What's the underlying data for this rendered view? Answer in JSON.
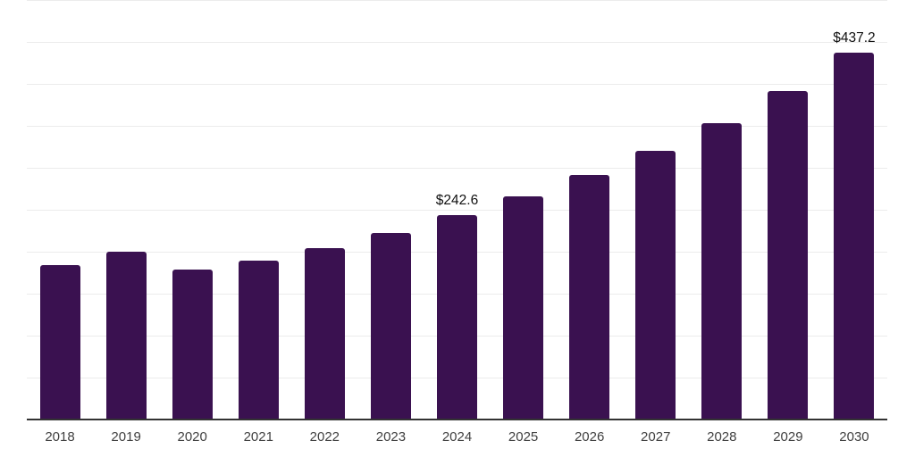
{
  "chart_data": {
    "type": "bar",
    "title": "",
    "xlabel": "",
    "ylabel": "",
    "categories": [
      "2018",
      "2019",
      "2020",
      "2021",
      "2022",
      "2023",
      "2024",
      "2025",
      "2026",
      "2027",
      "2028",
      "2029",
      "2030"
    ],
    "values": [
      183.2,
      199.9,
      177.9,
      188.6,
      203.9,
      222.0,
      242.6,
      265.5,
      291.5,
      319.9,
      353.4,
      391.5,
      437.2
    ],
    "data_labels": [
      "",
      "",
      "",
      "",
      "",
      "",
      "$242.6",
      "",
      "",
      "",
      "",
      "",
      "$437.2"
    ],
    "ylim": [
      0,
      500
    ],
    "gridline_step": 50,
    "grid": true,
    "legend_position": "none",
    "bar_color": "#3a1150",
    "gridline_color": "#ececec",
    "axis_line_color": "#333333",
    "tick_label_color": "#404040",
    "data_label_color": "#111111",
    "background_color": "#ffffff"
  }
}
